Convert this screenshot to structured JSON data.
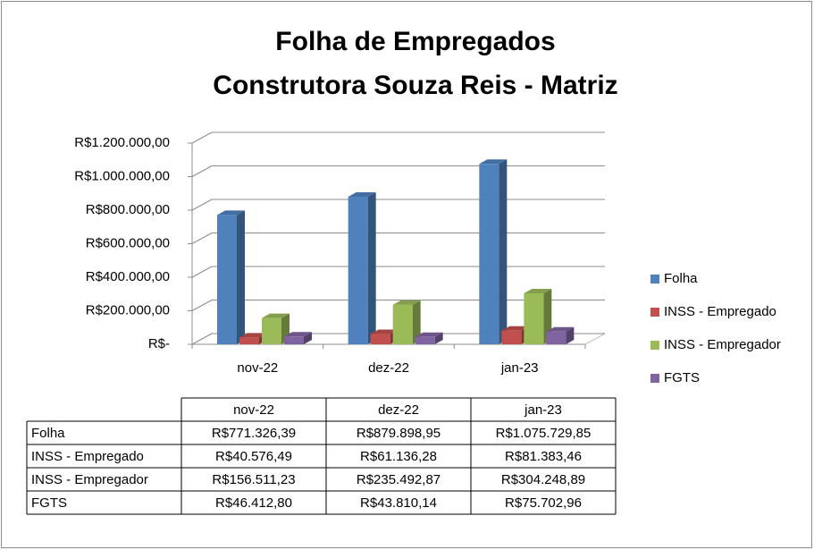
{
  "chart_data": {
    "type": "bar3d",
    "title": "Folha de Empregados",
    "subtitle": "Construtora Souza Reis - Matriz",
    "categories": [
      "nov-22",
      "dez-22",
      "jan-23"
    ],
    "series": [
      {
        "name": "Folha",
        "color": "#4f81bd",
        "values": [
          771326.39,
          879898.95,
          1075729.85
        ],
        "value_labels": [
          "R$771.326,39",
          "R$879.898,95",
          "R$1.075.729,85"
        ]
      },
      {
        "name": "INSS - Empregado",
        "color": "#c0504d",
        "values": [
          40576.49,
          61136.28,
          81383.46
        ],
        "value_labels": [
          "R$40.576,49",
          "R$61.136,28",
          "R$81.383,46"
        ]
      },
      {
        "name": "INSS - Empregador",
        "color": "#9bbb59",
        "values": [
          156511.23,
          235492.87,
          304248.89
        ],
        "value_labels": [
          "R$156.511,23",
          "R$235.492,87",
          "R$304.248,89"
        ]
      },
      {
        "name": "FGTS",
        "color": "#8064a2",
        "values": [
          46412.8,
          43810.14,
          75702.96
        ],
        "value_labels": [
          "R$46.412,80",
          "R$43.810,14",
          "R$75.702,96"
        ]
      }
    ],
    "ylim": [
      0,
      1200000
    ],
    "yticks": [
      {
        "value": 0,
        "label": "R$-"
      },
      {
        "value": 200000,
        "label": "R$200.000,00"
      },
      {
        "value": 400000,
        "label": "R$400.000,00"
      },
      {
        "value": 600000,
        "label": "R$600.000,00"
      },
      {
        "value": 800000,
        "label": "R$800.000,00"
      },
      {
        "value": 1000000,
        "label": "R$1.000.000,00"
      },
      {
        "value": 1200000,
        "label": "R$1.200.000,00"
      }
    ],
    "grid": true,
    "legend": "right",
    "data_table": true
  }
}
